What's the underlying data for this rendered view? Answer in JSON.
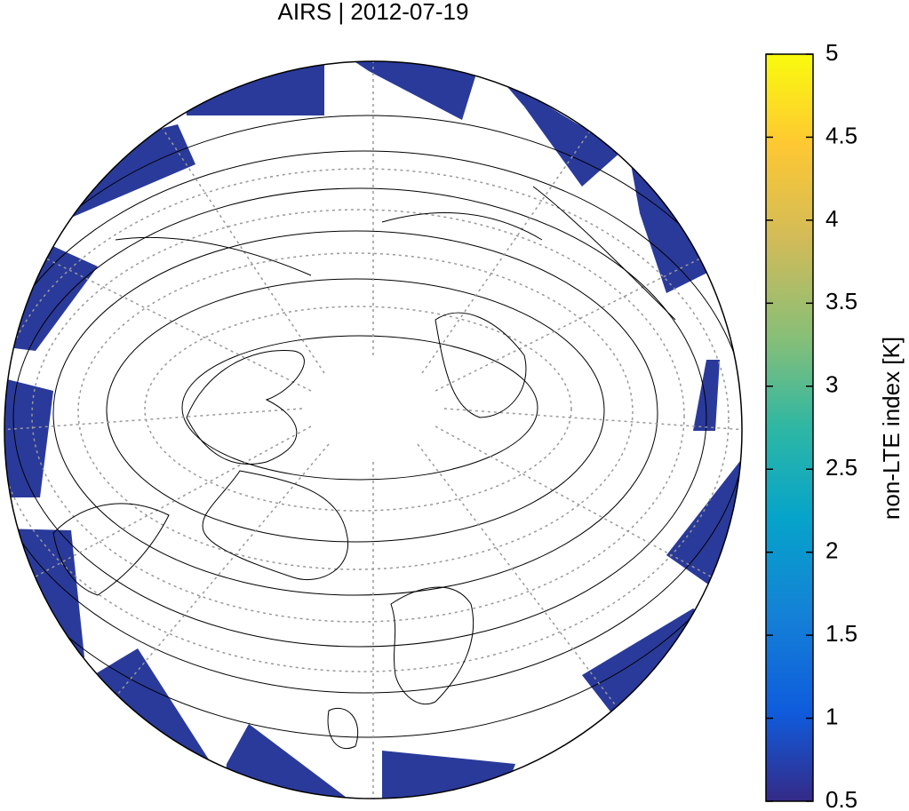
{
  "title": "AIRS | 2012-07-19",
  "colorbar": {
    "label": "non-LTE index [K]",
    "range": [
      0.5,
      5
    ],
    "ticks": [
      0.5,
      1,
      1.5,
      2,
      2.5,
      3,
      3.5,
      4,
      4.5,
      5
    ]
  }
}
